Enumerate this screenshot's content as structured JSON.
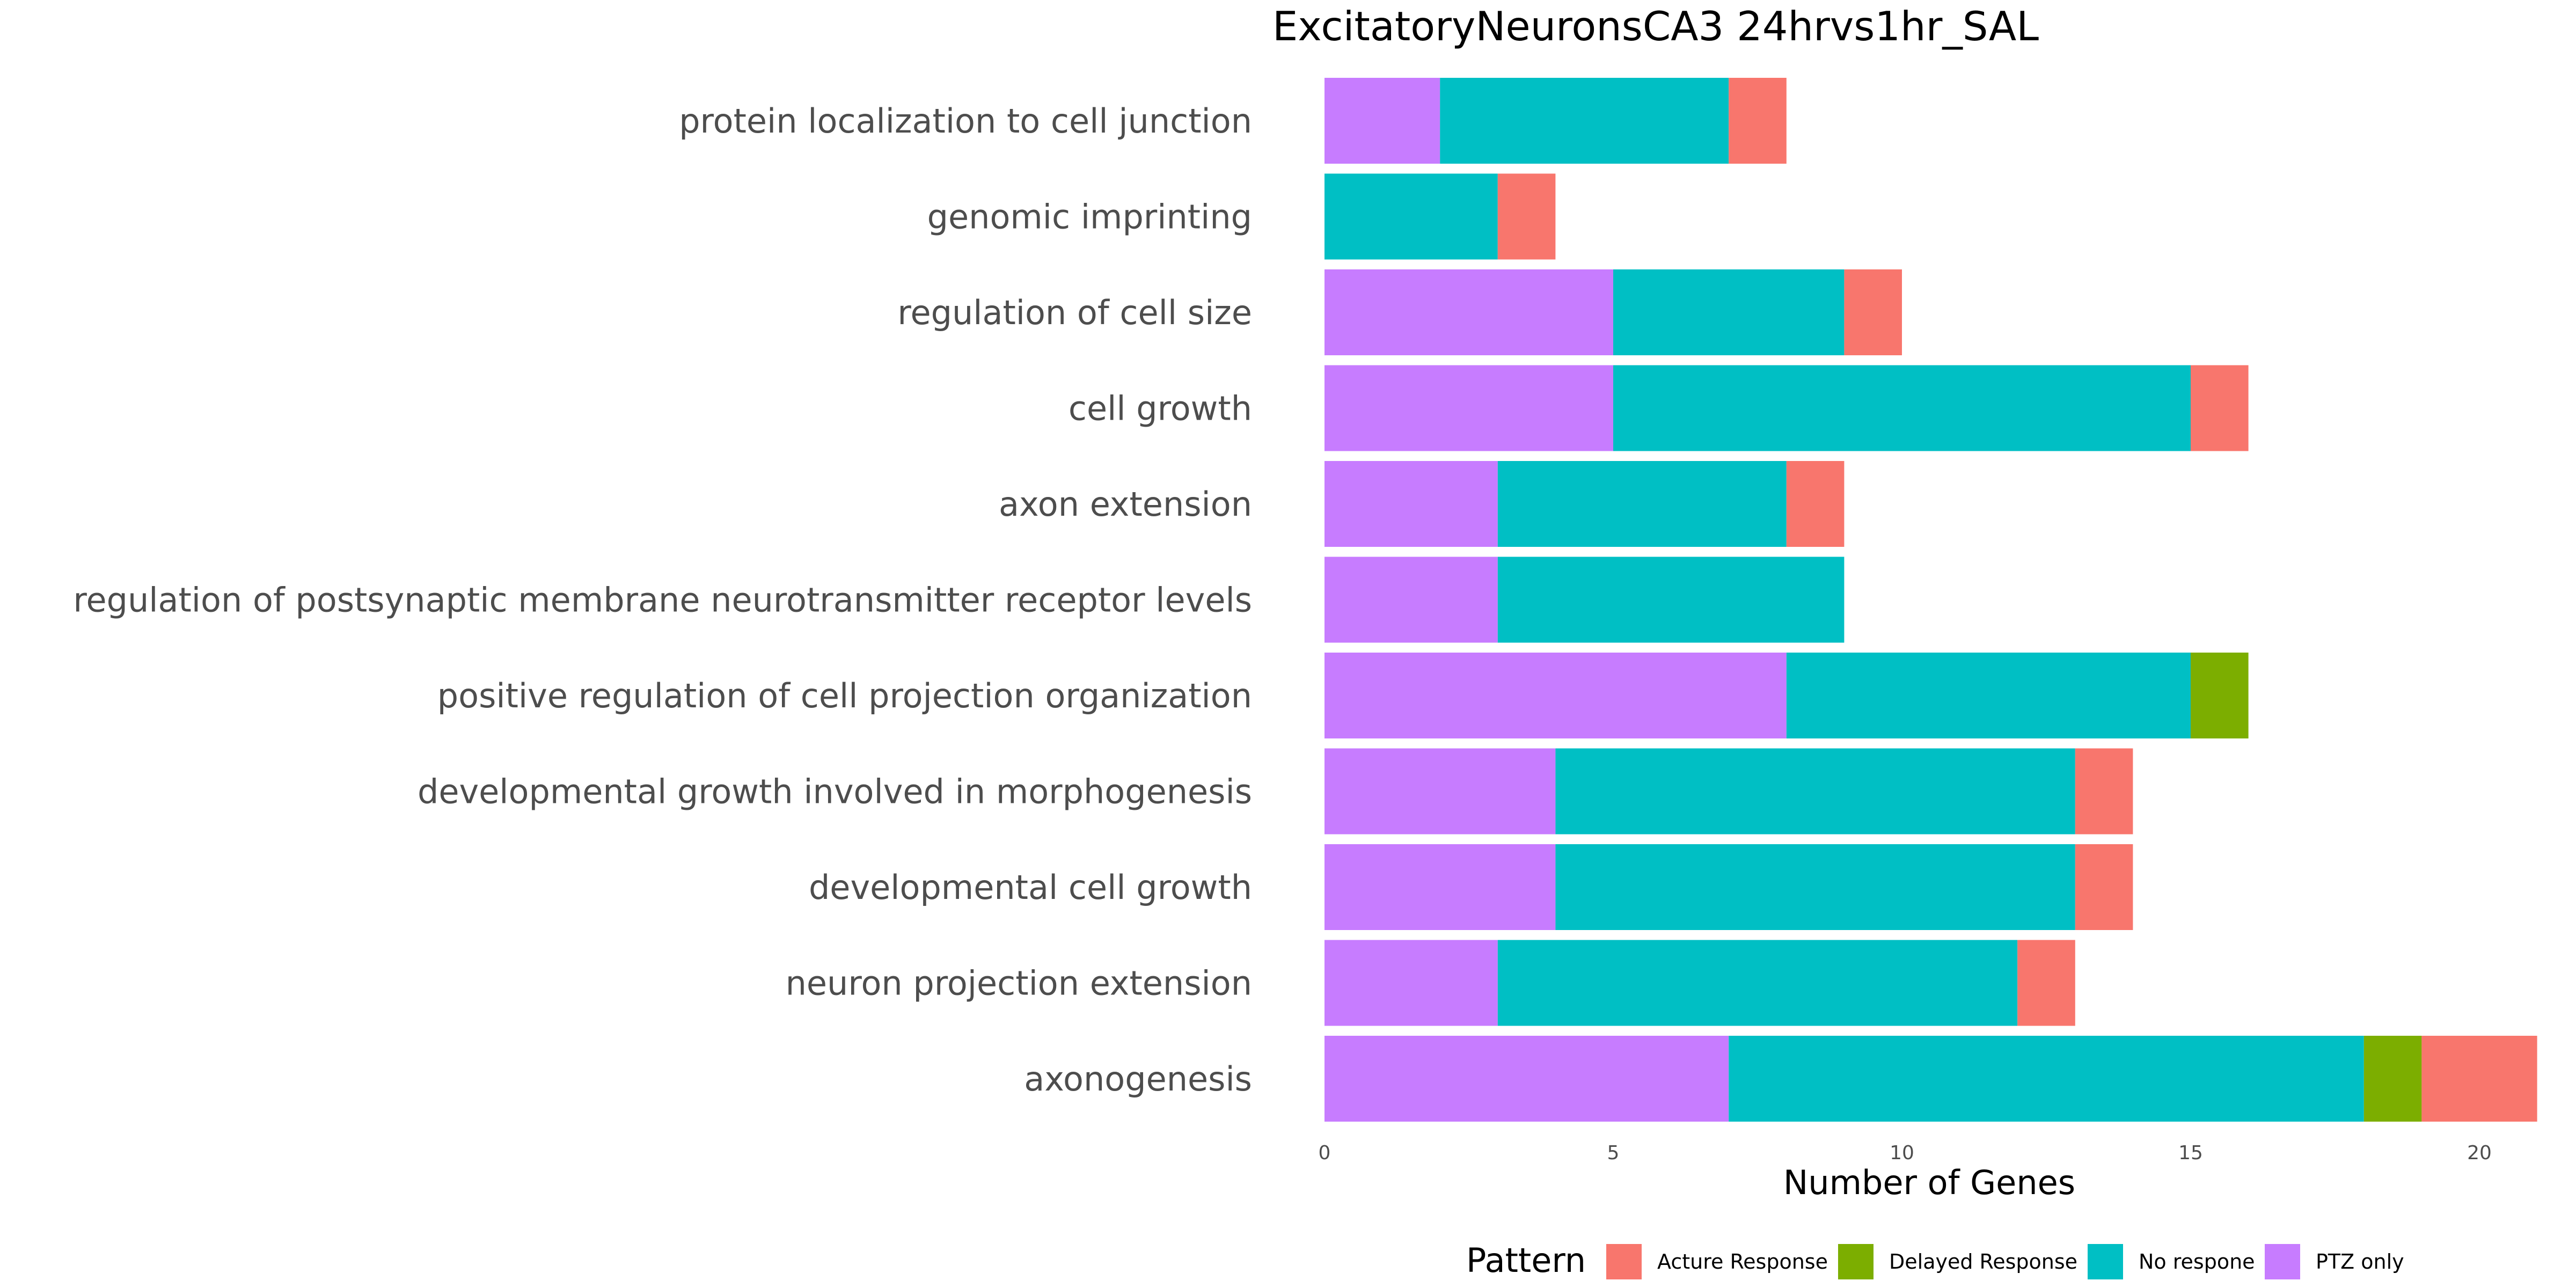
{
  "chart_data": {
    "type": "bar",
    "orientation": "horizontal",
    "stacked": true,
    "title": "ExcitatoryNeuronsCA3 24hrvs1hr_SAL",
    "xlabel": "Number of Genes",
    "ylabel": "",
    "xlim": [
      0,
      21
    ],
    "xticks": [
      0,
      5,
      10,
      15,
      20
    ],
    "grid": false,
    "legend": {
      "title": "Pattern",
      "position": "bottom"
    },
    "categories": [
      "protein localization to cell junction",
      "genomic imprinting",
      "regulation of cell size",
      "cell growth",
      "axon extension",
      "regulation of postsynaptic membrane neurotransmitter receptor levels",
      "positive regulation of cell projection organization",
      "developmental growth involved in morphogenesis",
      "developmental cell growth",
      "neuron projection extension",
      "axonogenesis"
    ],
    "series": [
      {
        "name": "PTZ only",
        "color": "#C77CFF",
        "values": [
          2,
          0,
          5,
          5,
          3,
          3,
          8,
          4,
          4,
          3,
          7
        ]
      },
      {
        "name": "No respone",
        "color": "#00BFC4",
        "values": [
          5,
          3,
          4,
          10,
          5,
          6,
          7,
          9,
          9,
          9,
          11
        ]
      },
      {
        "name": "Delayed Response",
        "color": "#7CAE00",
        "values": [
          0,
          0,
          0,
          0,
          0,
          0,
          1,
          0,
          0,
          0,
          1
        ]
      },
      {
        "name": "Acture Response",
        "color": "#F8766D",
        "values": [
          1,
          1,
          1,
          1,
          1,
          0,
          0,
          1,
          1,
          1,
          2
        ]
      }
    ],
    "legend_order": [
      "Acture Response",
      "Delayed Response",
      "No respone",
      "PTZ only"
    ]
  }
}
